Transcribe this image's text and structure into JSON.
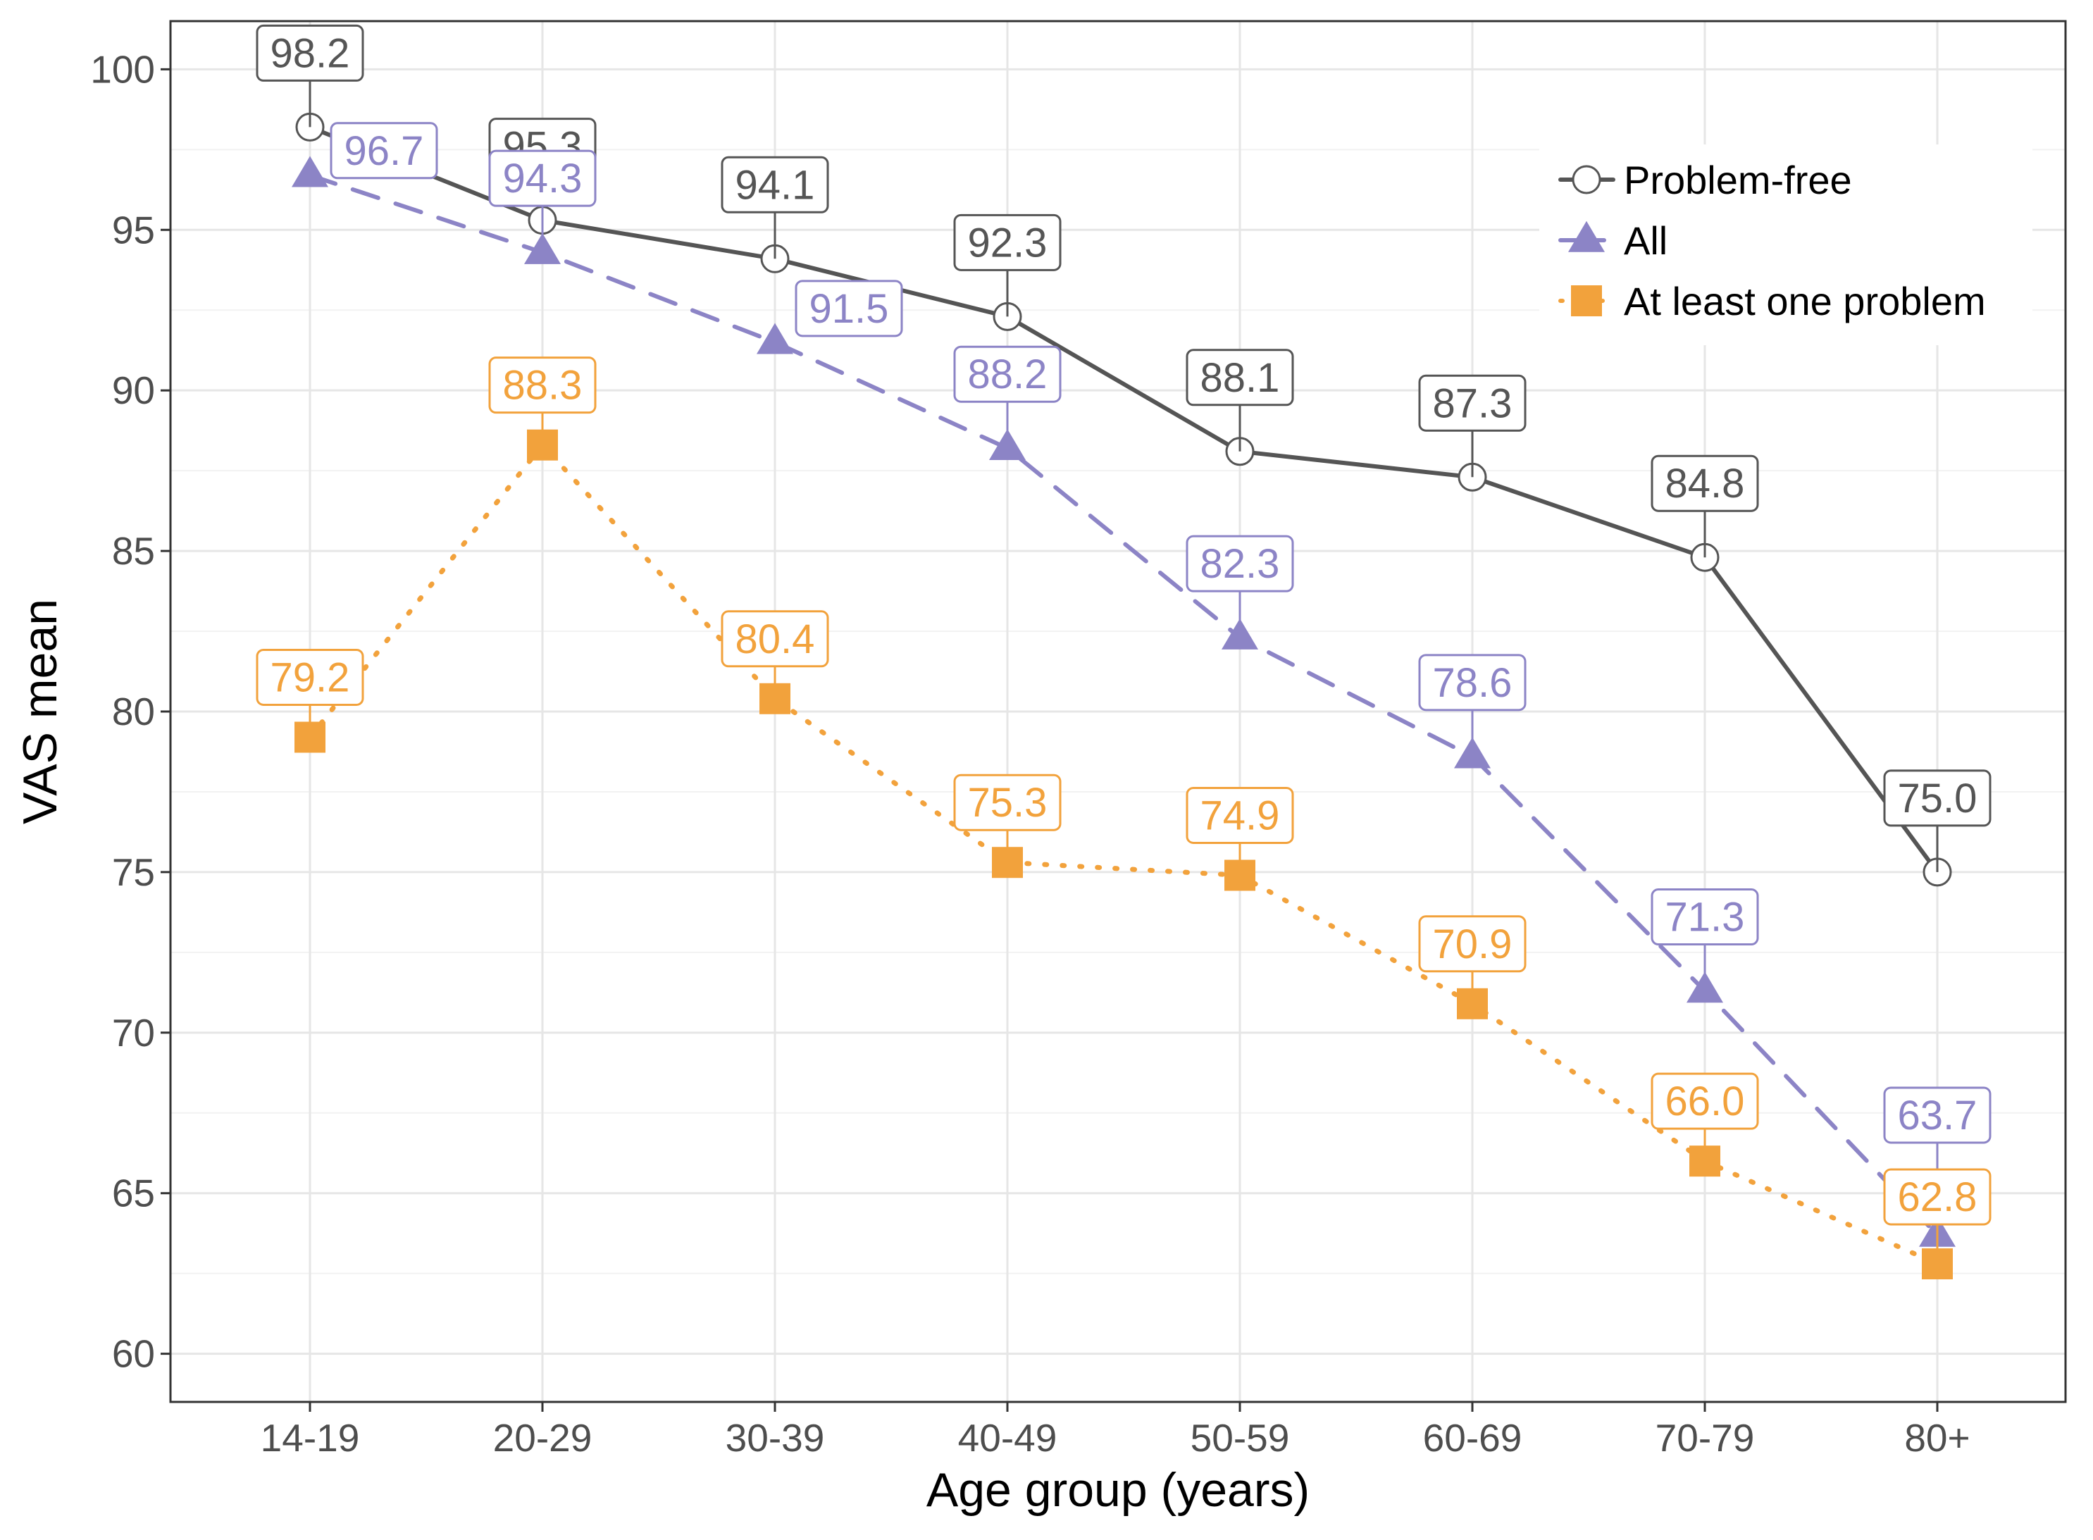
{
  "chart_data": {
    "type": "line",
    "title": "",
    "xlabel": "Age group (years)",
    "ylabel": "VAS mean",
    "categories": [
      "14-19",
      "20-29",
      "30-39",
      "40-49",
      "50-59",
      "60-69",
      "70-79",
      "80+"
    ],
    "y_ticks": [
      "60",
      "65",
      "70",
      "75",
      "80",
      "85",
      "90",
      "95",
      "100"
    ],
    "ylim": [
      58.5,
      101.5
    ],
    "grid": true,
    "legend_position": "top-right",
    "series": [
      {
        "name": "Problem-free",
        "color": "#555555",
        "line_style": "solid",
        "marker": "open-circle",
        "values": [
          98.2,
          95.3,
          94.1,
          92.3,
          88.1,
          87.3,
          84.8,
          75.0
        ],
        "labels": [
          "98.2",
          "95.3",
          "94.1",
          "92.3",
          "88.1",
          "87.3",
          "84.8",
          "75.0"
        ]
      },
      {
        "name": "All",
        "color": "#8c84c6",
        "line_style": "dashed",
        "marker": "triangle",
        "values": [
          96.7,
          94.3,
          91.5,
          88.2,
          82.3,
          78.6,
          71.3,
          63.7
        ],
        "labels": [
          "96.7",
          "94.3",
          "91.5",
          "88.2",
          "82.3",
          "78.6",
          "71.3",
          "63.7"
        ]
      },
      {
        "name": "At least one problem",
        "color": "#f2a23c",
        "line_style": "dotted",
        "marker": "square",
        "values": [
          79.2,
          88.3,
          80.4,
          75.3,
          74.9,
          70.9,
          66.0,
          62.8
        ],
        "labels": [
          "79.2",
          "88.3",
          "80.4",
          "75.3",
          "74.9",
          "70.9",
          "66.0",
          "62.8"
        ]
      }
    ]
  }
}
